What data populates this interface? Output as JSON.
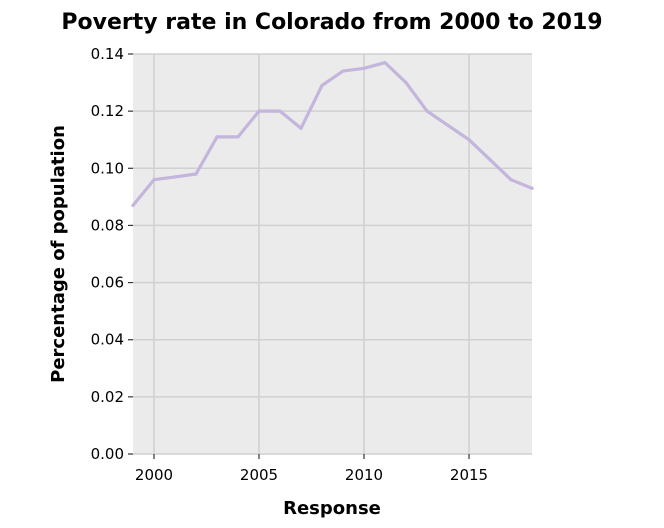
{
  "chart_data": {
    "type": "line",
    "title": "Poverty rate in Colorado from 2000 to 2019",
    "xlabel": "Response",
    "ylabel": "Percentage of population",
    "xlim": [
      1999,
      2018
    ],
    "ylim": [
      0,
      0.14
    ],
    "x_ticks": [
      2000,
      2005,
      2010,
      2015
    ],
    "x_tick_labels": [
      "2000",
      "2005",
      "2010",
      "2015"
    ],
    "y_ticks": [
      0,
      0.02,
      0.04,
      0.06,
      0.08,
      0.1,
      0.12,
      0.14
    ],
    "y_tick_labels": [
      "0.00",
      "0.02",
      "0.04",
      "0.06",
      "0.08",
      "0.10",
      "0.12",
      "0.14"
    ],
    "grid": true,
    "line_color": "#c3b5db",
    "panel_color": "#ebebeb",
    "series": [
      {
        "x": [
          1999,
          2000,
          2001,
          2002,
          2003,
          2004,
          2005,
          2006,
          2007,
          2008,
          2009,
          2010,
          2011,
          2012,
          2013,
          2014,
          2015,
          2016,
          2017,
          2018
        ],
        "values": [
          0.087,
          0.096,
          0.097,
          0.098,
          0.111,
          0.111,
          0.12,
          0.12,
          0.114,
          0.129,
          0.134,
          0.135,
          0.137,
          0.13,
          0.12,
          0.115,
          0.11,
          0.103,
          0.096,
          0.093
        ]
      }
    ]
  }
}
